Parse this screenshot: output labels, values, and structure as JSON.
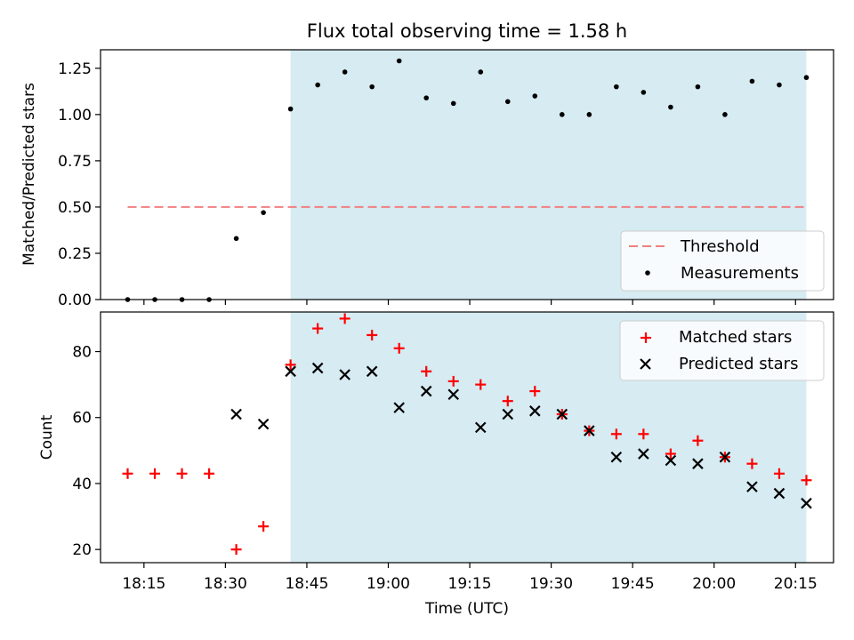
{
  "chart_data": [
    {
      "type": "scatter",
      "title": "Flux total observing time = 1.58 h",
      "ylabel": "Matched/Predicted stars",
      "xlim": [
        "18:07",
        "20:22"
      ],
      "ylim": [
        0,
        1.35
      ],
      "yticks": [
        "0.00",
        "0.25",
        "0.50",
        "0.75",
        "1.00",
        "1.25"
      ],
      "shaded_region": {
        "start": "18:42",
        "end": "20:17",
        "color": "#add8e6"
      },
      "threshold": {
        "name": "Threshold",
        "value": 0.5,
        "start": "18:12",
        "end": "20:17",
        "color": "#f08080"
      },
      "series": [
        {
          "name": "Measurements",
          "color": "#000000",
          "x": [
            "18:12",
            "18:17",
            "18:22",
            "18:27",
            "18:32",
            "18:37",
            "18:42",
            "18:47",
            "18:52",
            "18:57",
            "19:02",
            "19:07",
            "19:12",
            "19:17",
            "19:22",
            "19:27",
            "19:32",
            "19:37",
            "19:42",
            "19:47",
            "19:52",
            "19:57",
            "20:02",
            "20:07",
            "20:12",
            "20:17"
          ],
          "values": [
            0.0,
            0.0,
            0.0,
            0.0,
            0.33,
            0.47,
            1.03,
            1.16,
            1.23,
            1.15,
            1.29,
            1.09,
            1.06,
            1.23,
            1.07,
            1.1,
            1.0,
            1.0,
            1.15,
            1.12,
            1.04,
            1.15,
            1.0,
            1.18,
            1.16,
            1.2
          ]
        }
      ],
      "legend": {
        "position": "lower-right",
        "entries": [
          "Threshold",
          "Measurements"
        ]
      }
    },
    {
      "type": "scatter",
      "xlabel": "Time (UTC)",
      "ylabel": "Count",
      "xlim": [
        "18:07",
        "20:22"
      ],
      "ylim": [
        16,
        92
      ],
      "xticks": [
        "18:15",
        "18:30",
        "18:45",
        "19:00",
        "19:15",
        "19:30",
        "19:45",
        "20:00",
        "20:15"
      ],
      "yticks": [
        "20",
        "40",
        "60",
        "80"
      ],
      "shaded_region": {
        "start": "18:42",
        "end": "20:17",
        "color": "#add8e6"
      },
      "series": [
        {
          "name": "Matched stars",
          "marker": "plus",
          "color": "#ff0000",
          "x": [
            "18:12",
            "18:17",
            "18:22",
            "18:27",
            "18:32",
            "18:37",
            "18:42",
            "18:47",
            "18:52",
            "18:57",
            "19:02",
            "19:07",
            "19:12",
            "19:17",
            "19:22",
            "19:27",
            "19:32",
            "19:37",
            "19:42",
            "19:47",
            "19:52",
            "19:57",
            "20:02",
            "20:07",
            "20:12",
            "20:17"
          ],
          "values": [
            43,
            43,
            43,
            43,
            20,
            27,
            76,
            87,
            90,
            85,
            81,
            74,
            71,
            70,
            65,
            68,
            61,
            56,
            55,
            55,
            49,
            53,
            48,
            46,
            43,
            41
          ]
        },
        {
          "name": "Predicted stars",
          "marker": "x",
          "color": "#000000",
          "x": [
            "18:32",
            "18:37",
            "18:42",
            "18:47",
            "18:52",
            "18:57",
            "19:02",
            "19:07",
            "19:12",
            "19:17",
            "19:22",
            "19:27",
            "19:32",
            "19:37",
            "19:42",
            "19:47",
            "19:52",
            "19:57",
            "20:02",
            "20:07",
            "20:12",
            "20:17"
          ],
          "values": [
            61,
            58,
            74,
            75,
            73,
            74,
            63,
            68,
            67,
            57,
            61,
            62,
            61,
            56,
            48,
            49,
            47,
            46,
            48,
            39,
            37,
            34
          ]
        }
      ],
      "legend": {
        "position": "top-right",
        "entries": [
          "Matched stars",
          "Predicted stars"
        ]
      }
    }
  ]
}
